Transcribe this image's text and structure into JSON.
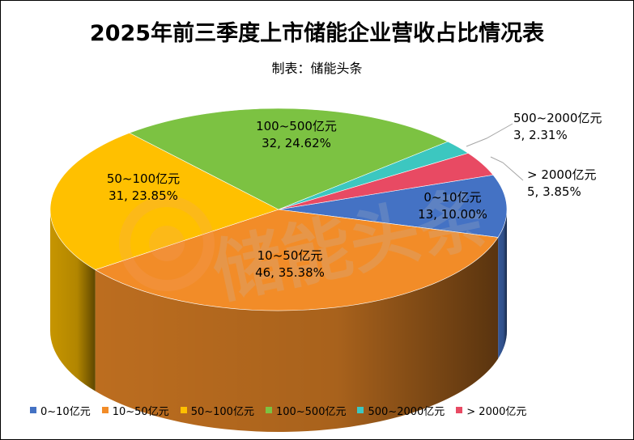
{
  "title": "2025年前三季度上市储能企业营收占比情况表",
  "subtitle": "制表：储能头条",
  "watermark": "储能头条",
  "chart_data": {
    "type": "pie",
    "style": "3d-pie",
    "legend_position": "bottom",
    "categories": [
      "0~10亿元",
      "10~50亿元",
      "50~100亿元",
      "100~500亿元",
      "500~2000亿元",
      "> 2000亿元"
    ],
    "values": [
      13,
      46,
      31,
      32,
      3,
      5
    ],
    "percent_labels": [
      "10.00%",
      "35.38%",
      "23.85%",
      "24.62%",
      "2.31%",
      "3.85%"
    ],
    "data_labels": [
      "13, 10.00%",
      "46, 35.38%",
      "31, 23.85%",
      "32, 24.62%",
      "3, 2.31%",
      "5, 3.85%"
    ],
    "colors": [
      "#4472C4",
      "#F28C28",
      "#FFC000",
      "#7CC242",
      "#3CC7C0",
      "#E84A63"
    ]
  }
}
